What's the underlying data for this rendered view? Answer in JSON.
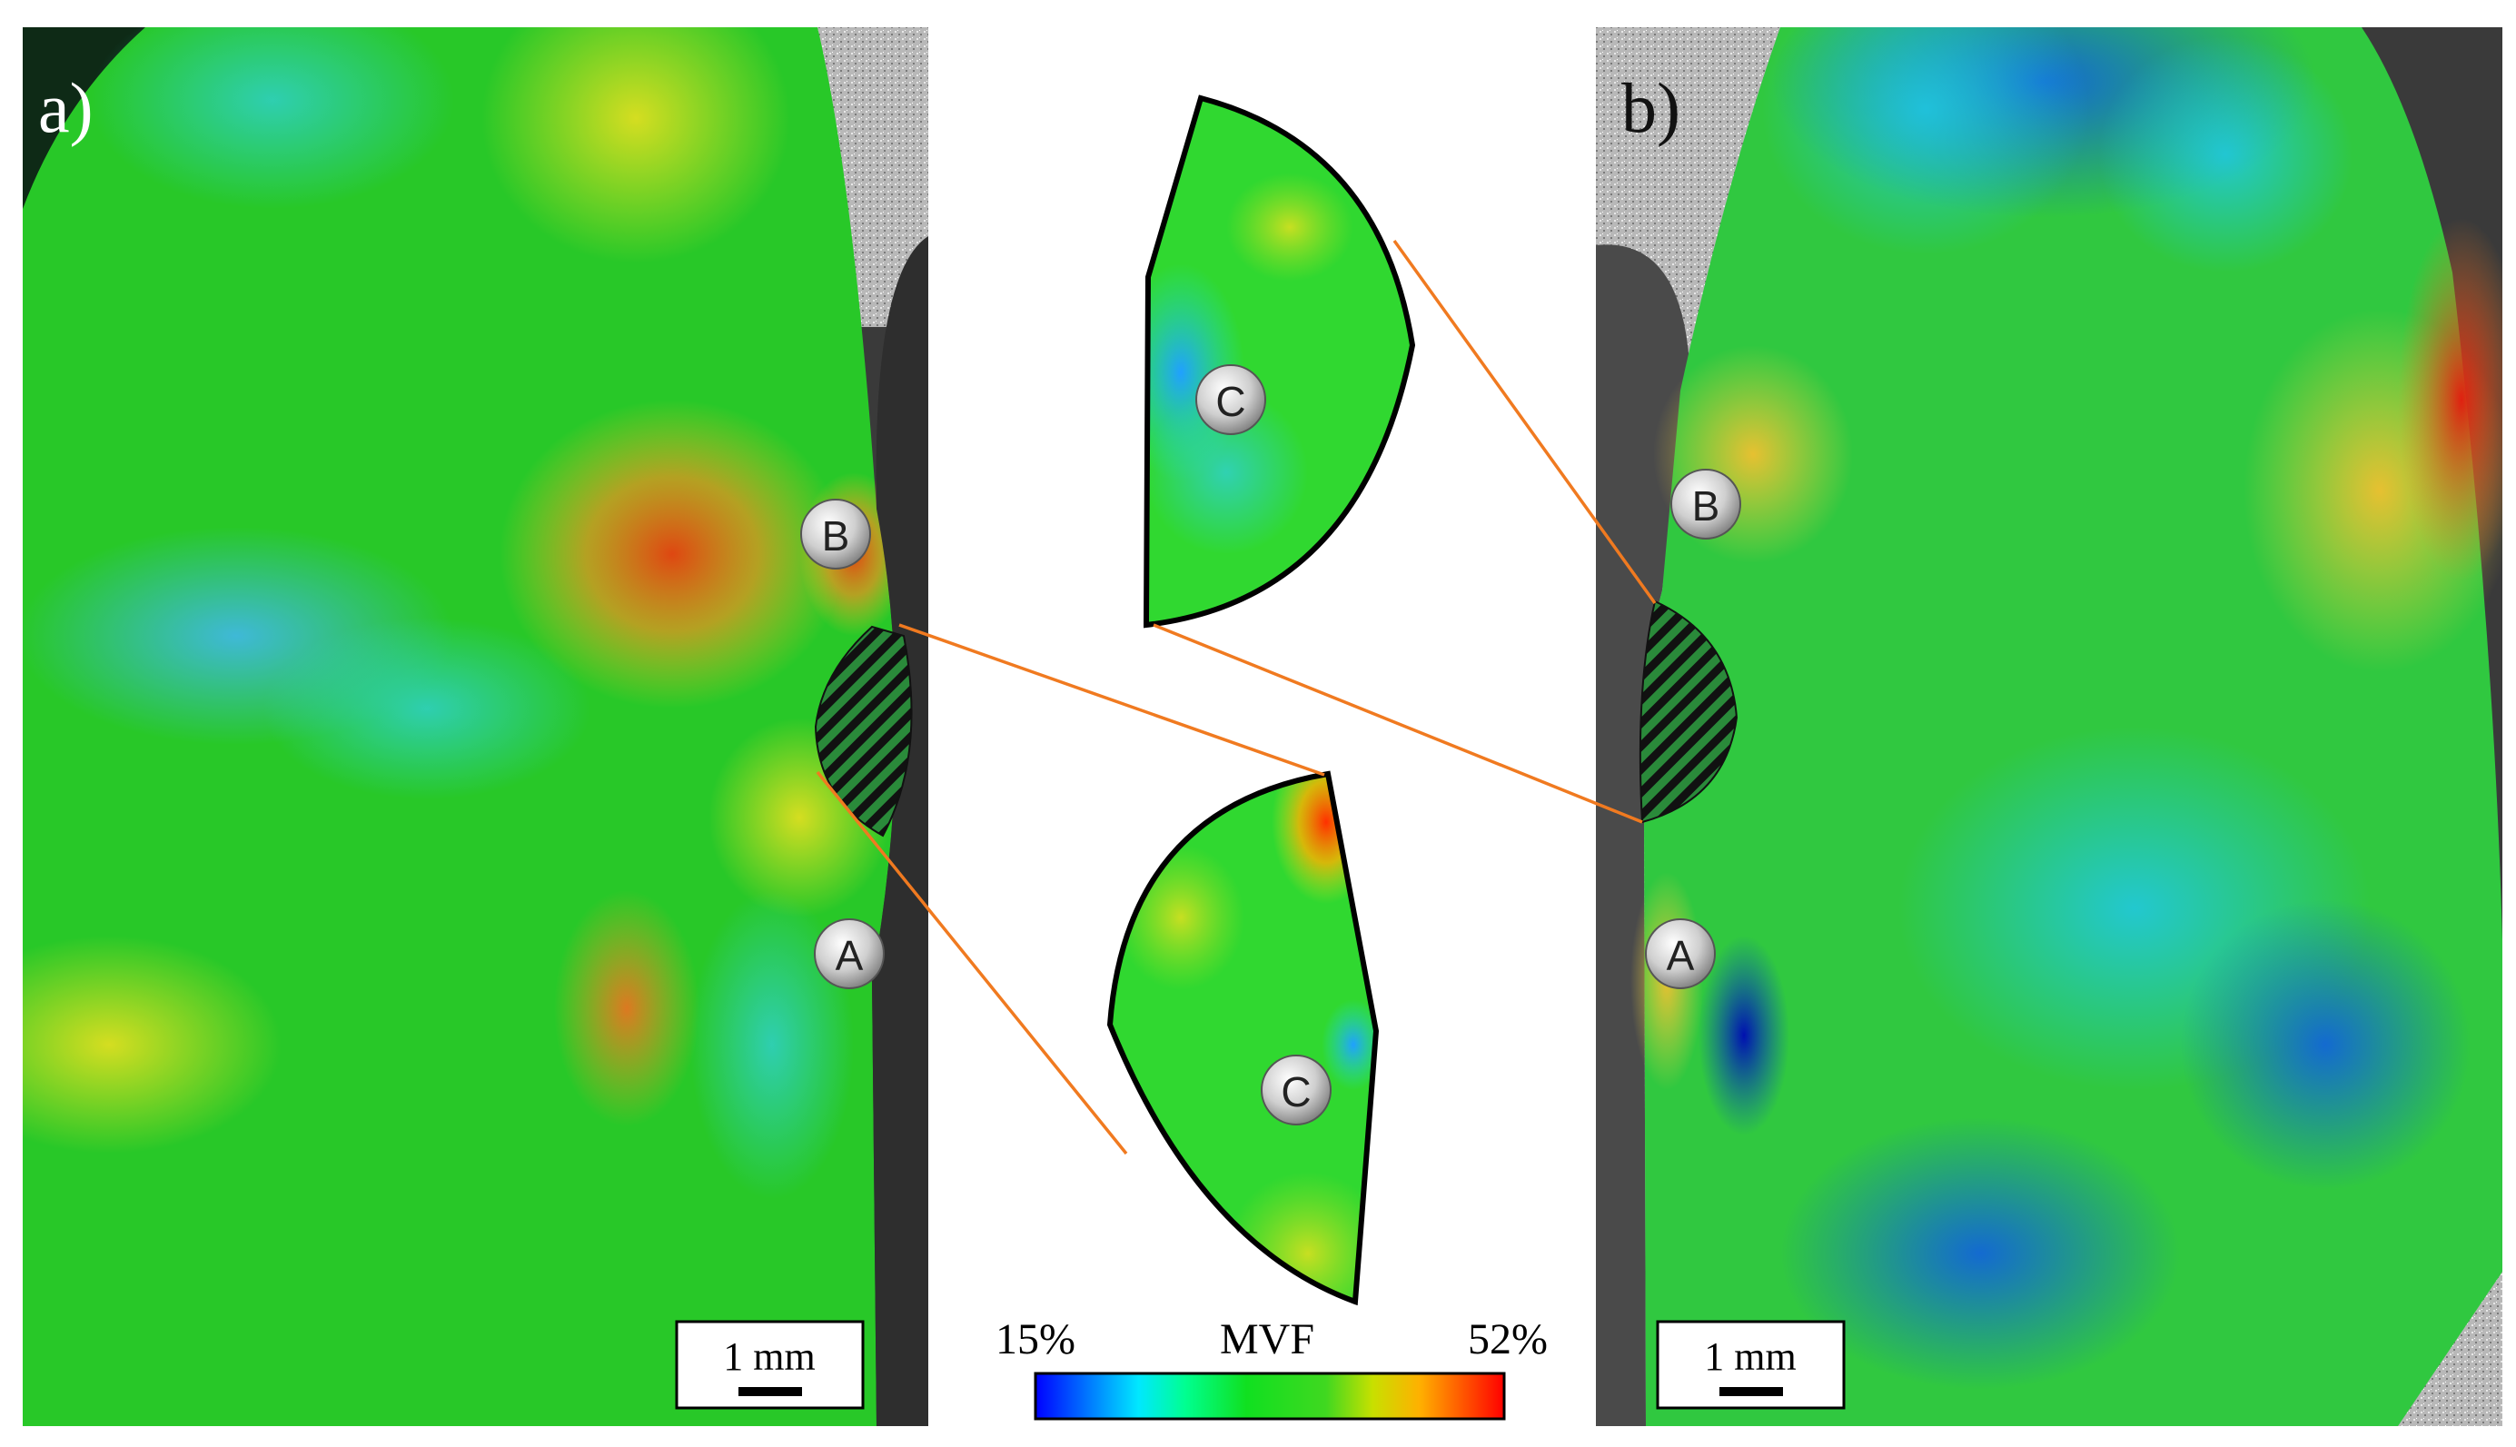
{
  "panels": {
    "a": {
      "label": "a)",
      "scale_bar": "1 mm"
    },
    "b": {
      "label": "b)",
      "scale_bar": "1 mm"
    }
  },
  "markers": {
    "a": "A",
    "b": "B",
    "c": "C"
  },
  "colorbar": {
    "min_label": "15%",
    "title": "MVF",
    "max_label": "52%",
    "colors": [
      "#0000ff",
      "#00aaff",
      "#00ffdd",
      "#00e040",
      "#22dd22",
      "#9adf00",
      "#ffd000",
      "#ff7000",
      "#ff0000"
    ]
  },
  "colors": {
    "connector": "#f07a20",
    "background_scan": "#bdbdbd",
    "dark_gap": "#3a3a3a"
  }
}
